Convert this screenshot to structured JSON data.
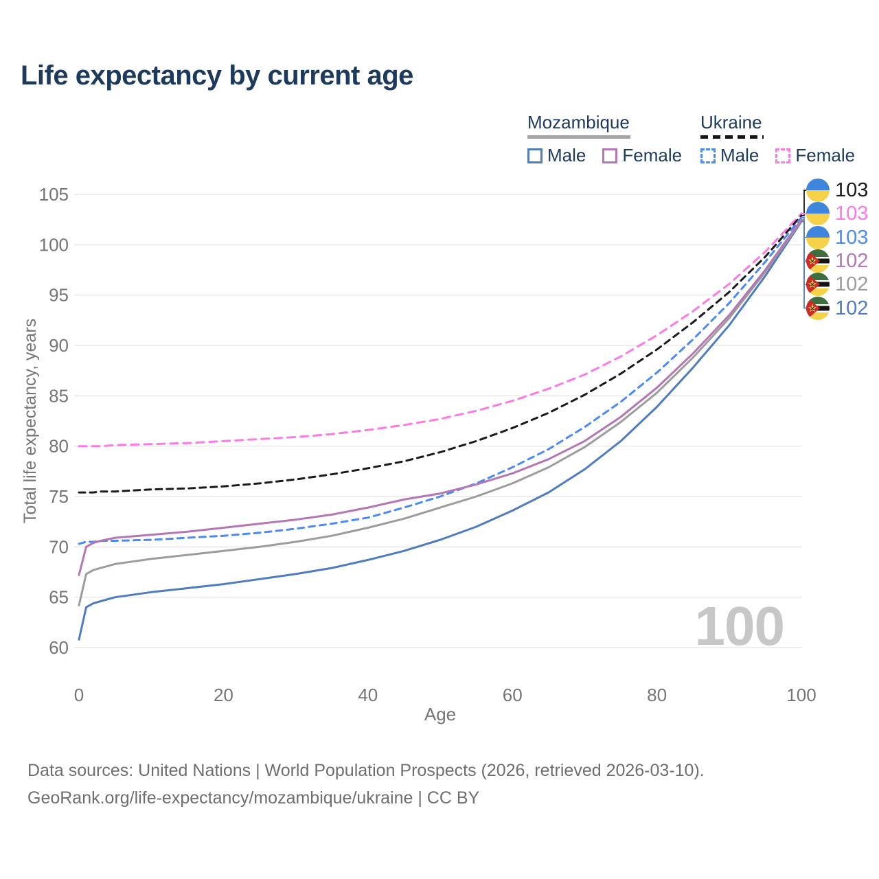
{
  "title": "Life expectancy by current age",
  "legend": {
    "groups": [
      {
        "label": "Mozambique",
        "line_style": "solid",
        "underline_color": "#a3a3a3",
        "items": [
          {
            "label": "Male",
            "color": "#4e7cbe"
          },
          {
            "label": "Female",
            "color": "#b476b4"
          }
        ]
      },
      {
        "label": "Ukraine",
        "line_style": "dashed",
        "underline_color": "#141414",
        "items": [
          {
            "label": "Male",
            "color": "#4a8af4"
          },
          {
            "label": "Female",
            "color": "#fb7ae4"
          }
        ]
      }
    ]
  },
  "chart_data": {
    "type": "line",
    "title": "Life expectancy by current age",
    "xlabel": "Age",
    "ylabel": "Total life expectancy, years",
    "xlim": [
      0,
      100
    ],
    "ylim": [
      60,
      105
    ],
    "xticks": [
      0,
      20,
      40,
      60,
      80,
      100
    ],
    "yticks": [
      60,
      65,
      70,
      75,
      80,
      85,
      90,
      95,
      100,
      105
    ],
    "grid": "horizontal",
    "legend_position": "top-right",
    "x": [
      0,
      1,
      2,
      3,
      5,
      10,
      15,
      20,
      25,
      30,
      35,
      40,
      45,
      50,
      55,
      60,
      65,
      70,
      75,
      80,
      85,
      90,
      95,
      100
    ],
    "series": [
      {
        "name": "Ukraine Female",
        "country": "Ukraine",
        "sex": "Female",
        "color": "#fb7ae4",
        "dash": "11 8",
        "values": [
          80.0,
          80.0,
          80.0,
          80.0,
          80.1,
          80.2,
          80.3,
          80.5,
          80.7,
          80.9,
          81.2,
          81.6,
          82.1,
          82.7,
          83.5,
          84.5,
          85.7,
          87.1,
          88.9,
          91.0,
          93.4,
          96.1,
          99.3,
          103.1
        ]
      },
      {
        "name": "Ukraine",
        "country": "Ukraine",
        "sex": "Both",
        "color": "#1a1a1a",
        "dash": "9 7",
        "values": [
          75.4,
          75.4,
          75.4,
          75.5,
          75.5,
          75.7,
          75.8,
          76.0,
          76.3,
          76.7,
          77.2,
          77.8,
          78.5,
          79.4,
          80.5,
          81.8,
          83.3,
          85.1,
          87.2,
          89.6,
          92.3,
          95.3,
          98.8,
          102.9
        ]
      },
      {
        "name": "Ukraine Male",
        "country": "Ukraine",
        "sex": "Male",
        "color": "#4a8af4",
        "dash": "9 7",
        "values": [
          70.3,
          70.5,
          70.5,
          70.6,
          70.6,
          70.7,
          70.9,
          71.1,
          71.4,
          71.8,
          72.3,
          72.9,
          73.9,
          75.0,
          76.3,
          77.9,
          79.7,
          81.9,
          84.4,
          87.3,
          90.6,
          94.2,
          98.3,
          102.7
        ]
      },
      {
        "name": "Mozambique Male",
        "country": "Mozambique",
        "sex": "Male",
        "color": "#4e7cbe",
        "dash": null,
        "values": [
          60.8,
          64.0,
          64.4,
          64.6,
          65.0,
          65.5,
          65.9,
          66.3,
          66.8,
          67.3,
          67.9,
          68.7,
          69.6,
          70.7,
          72.0,
          73.6,
          75.4,
          77.7,
          80.5,
          83.9,
          87.8,
          92.0,
          96.9,
          102.3
        ]
      },
      {
        "name": "Mozambique",
        "country": "Mozambique",
        "sex": "Both",
        "color": "#9c9c9c",
        "dash": null,
        "values": [
          64.2,
          67.3,
          67.7,
          67.9,
          68.3,
          68.8,
          69.2,
          69.6,
          70.0,
          70.5,
          71.1,
          71.9,
          72.8,
          73.9,
          75.0,
          76.3,
          77.9,
          79.9,
          82.4,
          85.3,
          88.8,
          92.7,
          97.3,
          102.4
        ]
      },
      {
        "name": "Mozambique Female",
        "country": "Mozambique",
        "sex": "Female",
        "color": "#b476b4",
        "dash": null,
        "values": [
          67.2,
          70.0,
          70.4,
          70.6,
          70.9,
          71.2,
          71.5,
          71.9,
          72.3,
          72.7,
          73.2,
          73.9,
          74.7,
          75.3,
          76.2,
          77.3,
          78.7,
          80.5,
          82.9,
          85.8,
          89.2,
          93.0,
          97.5,
          102.5
        ]
      }
    ]
  },
  "end_labels": [
    {
      "value": "103",
      "color": "#1a1a1a",
      "flag": "ukraine",
      "series_index": 1
    },
    {
      "value": "103",
      "color": "#fb7ae4",
      "flag": "ukraine",
      "series_index": 0
    },
    {
      "value": "103",
      "color": "#4a8af4",
      "flag": "ukraine",
      "series_index": 2
    },
    {
      "value": "102",
      "color": "#b476b4",
      "flag": "mozambique",
      "series_index": 5
    },
    {
      "value": "102",
      "color": "#9c9c9c",
      "flag": "mozambique",
      "series_index": 4
    },
    {
      "value": "102",
      "color": "#4e7cbe",
      "flag": "mozambique",
      "series_index": 3
    }
  ],
  "watermark": "100",
  "footer": {
    "line1": "Data sources: United Nations | World Population Prospects (2026, retrieved 2026-03-10).",
    "line2": "GeoRank.org/life-expectancy/mozambique/ukraine | CC BY"
  },
  "colors": {
    "background": "#ffffff",
    "title_text": "#1d3a5c",
    "axis_text": "#757575",
    "grid": "#e9e9e9",
    "watermark": "#c7c7c7",
    "footer_text": "#6e6e6e"
  }
}
